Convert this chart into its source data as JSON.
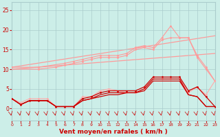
{
  "xlabel": "Vent moyen/en rafales ( km/h )",
  "yticks": [
    0,
    5,
    10,
    15,
    20,
    25
  ],
  "xtick_labels": [
    "0",
    "1",
    "2",
    "3",
    "4",
    "5",
    "6",
    "7",
    "8",
    "9",
    "10",
    "11",
    "12",
    "13",
    "14",
    "15",
    "16",
    "17",
    "18",
    "19",
    "20",
    "21",
    "22",
    "23"
  ],
  "ylim": [
    -3,
    27
  ],
  "xlim": [
    0,
    23
  ],
  "bg_color": "#cceee8",
  "grid_color": "#aacccc",
  "lc_light": "#ff9999",
  "lc_mid": "#ffaaaa",
  "lc_dark": "#cc0000",
  "lc_darkred": "#990000",
  "trend1_x": [
    0,
    23
  ],
  "trend1_y": [
    10.5,
    18.5
  ],
  "trend2_x": [
    0,
    23
  ],
  "trend2_y": [
    10.0,
    14.0
  ],
  "upper1_x": [
    0,
    3,
    6,
    7,
    8,
    9,
    10,
    11,
    12,
    13,
    14,
    15,
    16,
    17,
    18,
    19,
    20,
    21,
    22,
    23
  ],
  "upper1_y": [
    10.5,
    10.5,
    11.5,
    12.0,
    12.5,
    13.0,
    13.5,
    13.5,
    13.5,
    14.0,
    15.5,
    16.0,
    15.5,
    18.0,
    21.0,
    18.0,
    18.0,
    13.5,
    10.5,
    7.0
  ],
  "upper2_x": [
    0,
    3,
    5,
    6,
    7,
    8,
    9,
    10,
    11,
    12,
    13,
    14,
    15,
    16,
    17,
    18,
    19,
    20,
    21,
    22,
    23
  ],
  "upper2_y": [
    10.0,
    10.0,
    10.5,
    11.0,
    11.5,
    12.0,
    12.5,
    13.0,
    13.0,
    13.0,
    13.5,
    15.0,
    15.5,
    15.0,
    17.5,
    18.0,
    18.0,
    18.0,
    13.0,
    10.0,
    7.0
  ],
  "mid_x": [
    0,
    1,
    2,
    3,
    4,
    5,
    6,
    7,
    8,
    9,
    10,
    11,
    12,
    13,
    14,
    15,
    16,
    17,
    18,
    19,
    20,
    21,
    22,
    23
  ],
  "mid_y": [
    2.5,
    1.5,
    2.5,
    2.5,
    2.5,
    0.5,
    0.5,
    0.5,
    3.0,
    3.0,
    4.5,
    5.0,
    4.5,
    4.0,
    4.0,
    5.0,
    7.5,
    7.5,
    7.5,
    7.5,
    4.0,
    5.5,
    3.5,
    7.0
  ],
  "dark1_x": [
    0,
    1,
    2,
    3,
    4,
    5,
    6,
    7,
    8,
    9,
    10,
    11,
    12,
    13,
    14,
    15,
    16,
    17,
    18,
    19,
    20,
    21,
    22,
    23
  ],
  "dark1_y": [
    2.5,
    1.0,
    2.0,
    2.0,
    2.0,
    0.5,
    0.5,
    0.5,
    2.5,
    3.0,
    4.0,
    4.5,
    4.5,
    4.5,
    4.5,
    5.5,
    8.0,
    8.0,
    8.0,
    8.0,
    4.5,
    5.5,
    3.0,
    0.5
  ],
  "dark2_x": [
    0,
    1,
    2,
    3,
    4,
    5,
    6,
    7,
    8,
    9,
    10,
    11,
    12,
    13,
    14,
    15,
    16,
    17,
    18,
    19,
    20,
    21,
    22,
    23
  ],
  "dark2_y": [
    2.5,
    1.0,
    2.0,
    2.0,
    2.0,
    0.5,
    0.5,
    0.5,
    2.0,
    2.5,
    3.5,
    4.0,
    4.0,
    4.0,
    4.0,
    5.0,
    7.5,
    7.5,
    7.5,
    7.5,
    3.5,
    3.0,
    0.5,
    0.5
  ],
  "dark3_x": [
    0,
    1,
    2,
    3,
    4,
    5,
    6,
    7,
    8,
    9,
    10,
    11,
    12,
    13,
    14,
    15,
    16,
    17,
    18,
    19,
    20,
    21,
    22,
    23
  ],
  "dark3_y": [
    2.5,
    1.0,
    2.0,
    2.0,
    2.0,
    0.5,
    0.5,
    0.5,
    2.0,
    2.5,
    3.0,
    3.5,
    3.5,
    4.0,
    4.0,
    4.5,
    7.0,
    7.0,
    7.0,
    7.0,
    3.5,
    3.0,
    0.5,
    0.5
  ],
  "arrows_x": [
    0,
    1,
    2,
    3,
    4,
    5,
    6,
    7,
    8,
    9,
    10,
    11,
    12,
    13,
    14,
    15,
    16,
    17,
    18,
    19,
    20,
    21,
    22,
    23
  ]
}
